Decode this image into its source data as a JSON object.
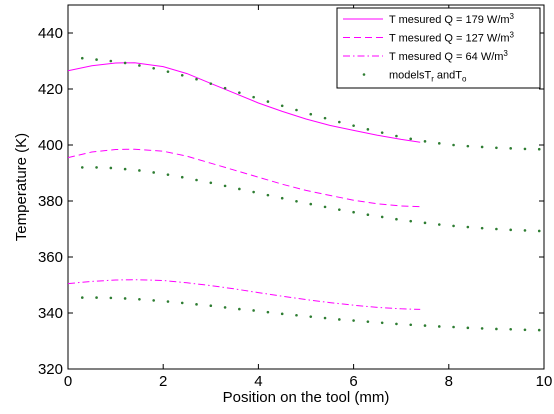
{
  "chart_data": {
    "type": "line",
    "title": "",
    "xlabel": "Position on the tool (mm)",
    "ylabel": "Temperature (K)",
    "xlim": [
      0,
      10
    ],
    "ylim": [
      320,
      450
    ],
    "xticks": [
      0,
      2,
      4,
      6,
      8,
      10
    ],
    "yticks": [
      320,
      340,
      360,
      380,
      400,
      420,
      440
    ],
    "grid": false,
    "legend": {
      "placement": "top-right",
      "entries": [
        {
          "base": "T mesured Q = 179 W/m",
          "sup": "3",
          "style": "solid",
          "color": "#ff00ff"
        },
        {
          "base": "T mesured Q = 127 W/m",
          "sup": "3",
          "style": "dashed",
          "color": "#ff00ff"
        },
        {
          "base": "T mesured Q = 64 W/m",
          "sup": "3",
          "style": "dashdot",
          "color": "#ff00ff"
        },
        {
          "base": "modelsT",
          "sub1": "r",
          "mid": " andT",
          "sub2": "o",
          "style": "dots",
          "color": "#2e7d32"
        }
      ]
    },
    "series": [
      {
        "name": "T mesured Q = 179 W/m3",
        "style": "solid",
        "color": "#ff00ff",
        "x": [
          0,
          0.5,
          1.0,
          1.4,
          2.0,
          2.5,
          3.0,
          3.5,
          4.0,
          4.5,
          5.0,
          5.5,
          6.0,
          6.5,
          7.0,
          7.4
        ],
        "y": [
          426.5,
          428.3,
          429.3,
          429.4,
          428.0,
          425.5,
          422.0,
          418.5,
          415.0,
          412.0,
          409.3,
          407.0,
          405.2,
          403.5,
          402.0,
          401.0
        ]
      },
      {
        "name": "T mesured Q = 127 W/m3",
        "style": "dashed",
        "color": "#ff00ff",
        "x": [
          0,
          0.5,
          1.0,
          1.4,
          2.0,
          2.5,
          3.0,
          3.5,
          4.0,
          4.5,
          5.0,
          5.5,
          6.0,
          6.5,
          7.0,
          7.4
        ],
        "y": [
          395.5,
          397.5,
          398.4,
          398.5,
          397.8,
          396.0,
          393.5,
          391.0,
          388.5,
          386.0,
          383.8,
          382.0,
          380.3,
          379.0,
          378.2,
          378.0
        ]
      },
      {
        "name": "T mesured Q = 64 W/m3",
        "style": "dashdot",
        "color": "#ff00ff",
        "x": [
          0,
          0.5,
          1.0,
          1.4,
          2.0,
          2.5,
          3.0,
          3.5,
          4.0,
          4.5,
          5.0,
          5.5,
          6.0,
          6.5,
          7.0,
          7.4
        ],
        "y": [
          350.5,
          351.3,
          351.8,
          351.9,
          351.6,
          350.8,
          349.8,
          348.6,
          347.3,
          346.0,
          344.8,
          343.7,
          342.8,
          342.0,
          341.5,
          341.3
        ]
      },
      {
        "name": "modelsTr andTo (Q = 179)",
        "style": "dots",
        "color": "#2e7d32",
        "x": [
          0.3,
          0.6,
          0.9,
          1.2,
          1.5,
          1.8,
          2.1,
          2.4,
          2.7,
          3.0,
          3.3,
          3.6,
          3.9,
          4.2,
          4.5,
          4.8,
          5.1,
          5.4,
          5.7,
          6.0,
          6.3,
          6.6,
          6.9,
          7.2,
          7.5,
          7.8,
          8.1,
          8.4,
          8.7,
          9.0,
          9.3,
          9.6,
          9.9
        ],
        "y": [
          431,
          430.5,
          430,
          429.3,
          428.4,
          427.4,
          426.2,
          424.9,
          423.5,
          421.9,
          420.3,
          418.7,
          417.1,
          415.5,
          414.0,
          412.5,
          411.0,
          409.6,
          408.2,
          406.9,
          405.6,
          404.4,
          403.2,
          402.2,
          401.3,
          400.6,
          400.0,
          399.6,
          399.3,
          399.0,
          398.8,
          398.6,
          398.5
        ]
      },
      {
        "name": "modelsTr andTo (Q = 127)",
        "style": "dots",
        "color": "#2e7d32",
        "x": [
          0.3,
          0.6,
          0.9,
          1.2,
          1.5,
          1.8,
          2.1,
          2.4,
          2.7,
          3.0,
          3.3,
          3.6,
          3.9,
          4.2,
          4.5,
          4.8,
          5.1,
          5.4,
          5.7,
          6.0,
          6.3,
          6.6,
          6.9,
          7.2,
          7.5,
          7.8,
          8.1,
          8.4,
          8.7,
          9.0,
          9.3,
          9.6,
          9.9
        ],
        "y": [
          392,
          392,
          391.8,
          391.4,
          390.9,
          390.2,
          389.4,
          388.5,
          387.5,
          386.5,
          385.4,
          384.3,
          383.2,
          382.1,
          381.0,
          379.9,
          378.9,
          377.9,
          376.9,
          376.0,
          375.1,
          374.3,
          373.5,
          372.8,
          372.2,
          371.6,
          371.1,
          370.7,
          370.3,
          370.0,
          369.7,
          369.5,
          369.3
        ]
      },
      {
        "name": "modelsTr andTo (Q = 64)",
        "style": "dots",
        "color": "#2e7d32",
        "x": [
          0.3,
          0.6,
          0.9,
          1.2,
          1.5,
          1.8,
          2.1,
          2.4,
          2.7,
          3.0,
          3.3,
          3.6,
          3.9,
          4.2,
          4.5,
          4.8,
          5.1,
          5.4,
          5.7,
          6.0,
          6.3,
          6.6,
          6.9,
          7.2,
          7.5,
          7.8,
          8.1,
          8.4,
          8.7,
          9.0,
          9.3,
          9.6,
          9.9
        ],
        "y": [
          345.5,
          345.5,
          345.4,
          345.2,
          344.9,
          344.5,
          344.1,
          343.6,
          343.1,
          342.6,
          342.0,
          341.4,
          340.9,
          340.3,
          339.7,
          339.2,
          338.7,
          338.2,
          337.7,
          337.3,
          336.9,
          336.5,
          336.1,
          335.8,
          335.5,
          335.2,
          335.0,
          334.7,
          334.5,
          334.3,
          334.2,
          334.0,
          333.9
        ]
      }
    ]
  }
}
